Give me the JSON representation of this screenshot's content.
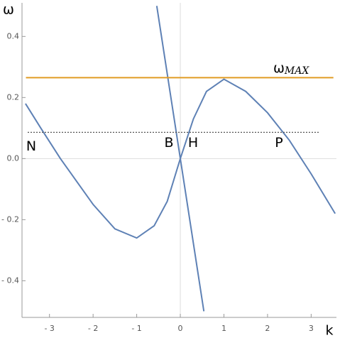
{
  "chart_data": {
    "type": "line",
    "y_label": "ω",
    "x_label": "k",
    "xlim": [
      -3.63,
      3.58
    ],
    "ylim": [
      -0.52,
      0.51
    ],
    "xticks": [
      {
        "value": -3,
        "label": "- 3"
      },
      {
        "value": -2,
        "label": "- 2"
      },
      {
        "value": -1,
        "label": "- 1"
      },
      0,
      1,
      2,
      3
    ],
    "yticks": [
      {
        "value": -0.4,
        "label": "- 0.4"
      },
      {
        "value": -0.2,
        "label": "- 0.2"
      },
      {
        "value": 0,
        "label": "0.0"
      },
      0.2,
      0.4
    ],
    "series": [
      {
        "color": "#5e81b5",
        "x": [
          -3.55,
          -3.2,
          -2.75,
          -2.5,
          -2,
          -1.5,
          -1,
          -0.6,
          -0.3,
          0,
          0.3,
          0.6,
          1,
          1.5,
          2,
          2.5,
          3,
          3.55
        ],
        "values": [
          0.18,
          0.1,
          0.0,
          -0.05,
          -0.15,
          -0.23,
          -0.26,
          -0.22,
          -0.14,
          0,
          0.13,
          0.22,
          0.26,
          0.22,
          0.15,
          0.06,
          -0.05,
          -0.18
        ]
      },
      {
        "color": "#5e81b5",
        "x": [
          -0.54,
          0.54
        ],
        "values": [
          0.5,
          -0.5
        ]
      },
      {
        "color": "#e19c24",
        "x": [
          -3.54,
          3.51
        ],
        "values": [
          0.265,
          0.265
        ]
      },
      {
        "color": "#555555",
        "dashed": true,
        "x": [
          -3.5,
          3.19
        ],
        "values": [
          0.086,
          0.086
        ]
      }
    ],
    "annotations": [
      {
        "text": "ω",
        "sub": "MAX"
      },
      {
        "text": "N"
      },
      {
        "text": "B"
      },
      {
        "text": "H"
      },
      {
        "text": "P"
      }
    ]
  }
}
